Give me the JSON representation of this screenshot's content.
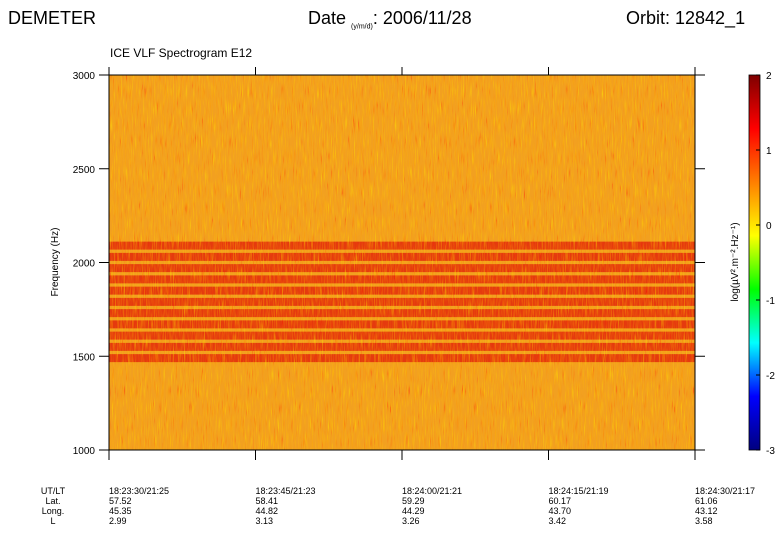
{
  "header": {
    "mission": "DEMETER",
    "date_label": "Date",
    "date_unit": "(y/m/d)",
    "date_value": ": 2006/11/28",
    "orbit": "Orbit: 12842_1"
  },
  "chart_data": {
    "type": "heatmap",
    "title": "ICE VLF Spectrogram E12",
    "ylabel": "Frequency (Hz)",
    "ylim": [
      1000,
      3000
    ],
    "yticks": [
      1000,
      1500,
      2000,
      2500,
      3000
    ],
    "xticks": [
      "18:23:30/21:25",
      "18:23:45/21:23",
      "18:24:00/21:21",
      "18:24:15/21:19",
      "18:24:30/21:17"
    ],
    "colorbar": {
      "label": "log(µV².m⁻².Hz⁻¹)",
      "range": [
        -3,
        2
      ],
      "ticks": [
        2,
        1,
        0,
        -1,
        -2,
        -3
      ],
      "colors": [
        "#00007f",
        "#0000ff",
        "#00ffff",
        "#00ff00",
        "#ffff00",
        "#ff7f00",
        "#ff0000",
        "#7f0000"
      ]
    },
    "bands_hz": [
      1490,
      1550,
      1610,
      1670,
      1730,
      1790,
      1850,
      1910,
      1970,
      2030,
      2090
    ]
  },
  "ephemeris": {
    "row_labels": [
      "UT/LT",
      "Lat.",
      "Long.",
      "L"
    ],
    "columns": [
      {
        "time": "18:23:30/21:25",
        "lat": "57.52",
        "long": "45.35",
        "l": "2.99"
      },
      {
        "time": "18:23:45/21:23",
        "lat": "58.41",
        "long": "44.82",
        "l": "3.13"
      },
      {
        "time": "18:24:00/21:21",
        "lat": "59.29",
        "long": "44.29",
        "l": "3.26"
      },
      {
        "time": "18:24:15/21:19",
        "lat": "60.17",
        "long": "43.70",
        "l": "3.42"
      },
      {
        "time": "18:24:30/21:17",
        "lat": "61.06",
        "long": "43.12",
        "l": "3.58"
      }
    ]
  }
}
